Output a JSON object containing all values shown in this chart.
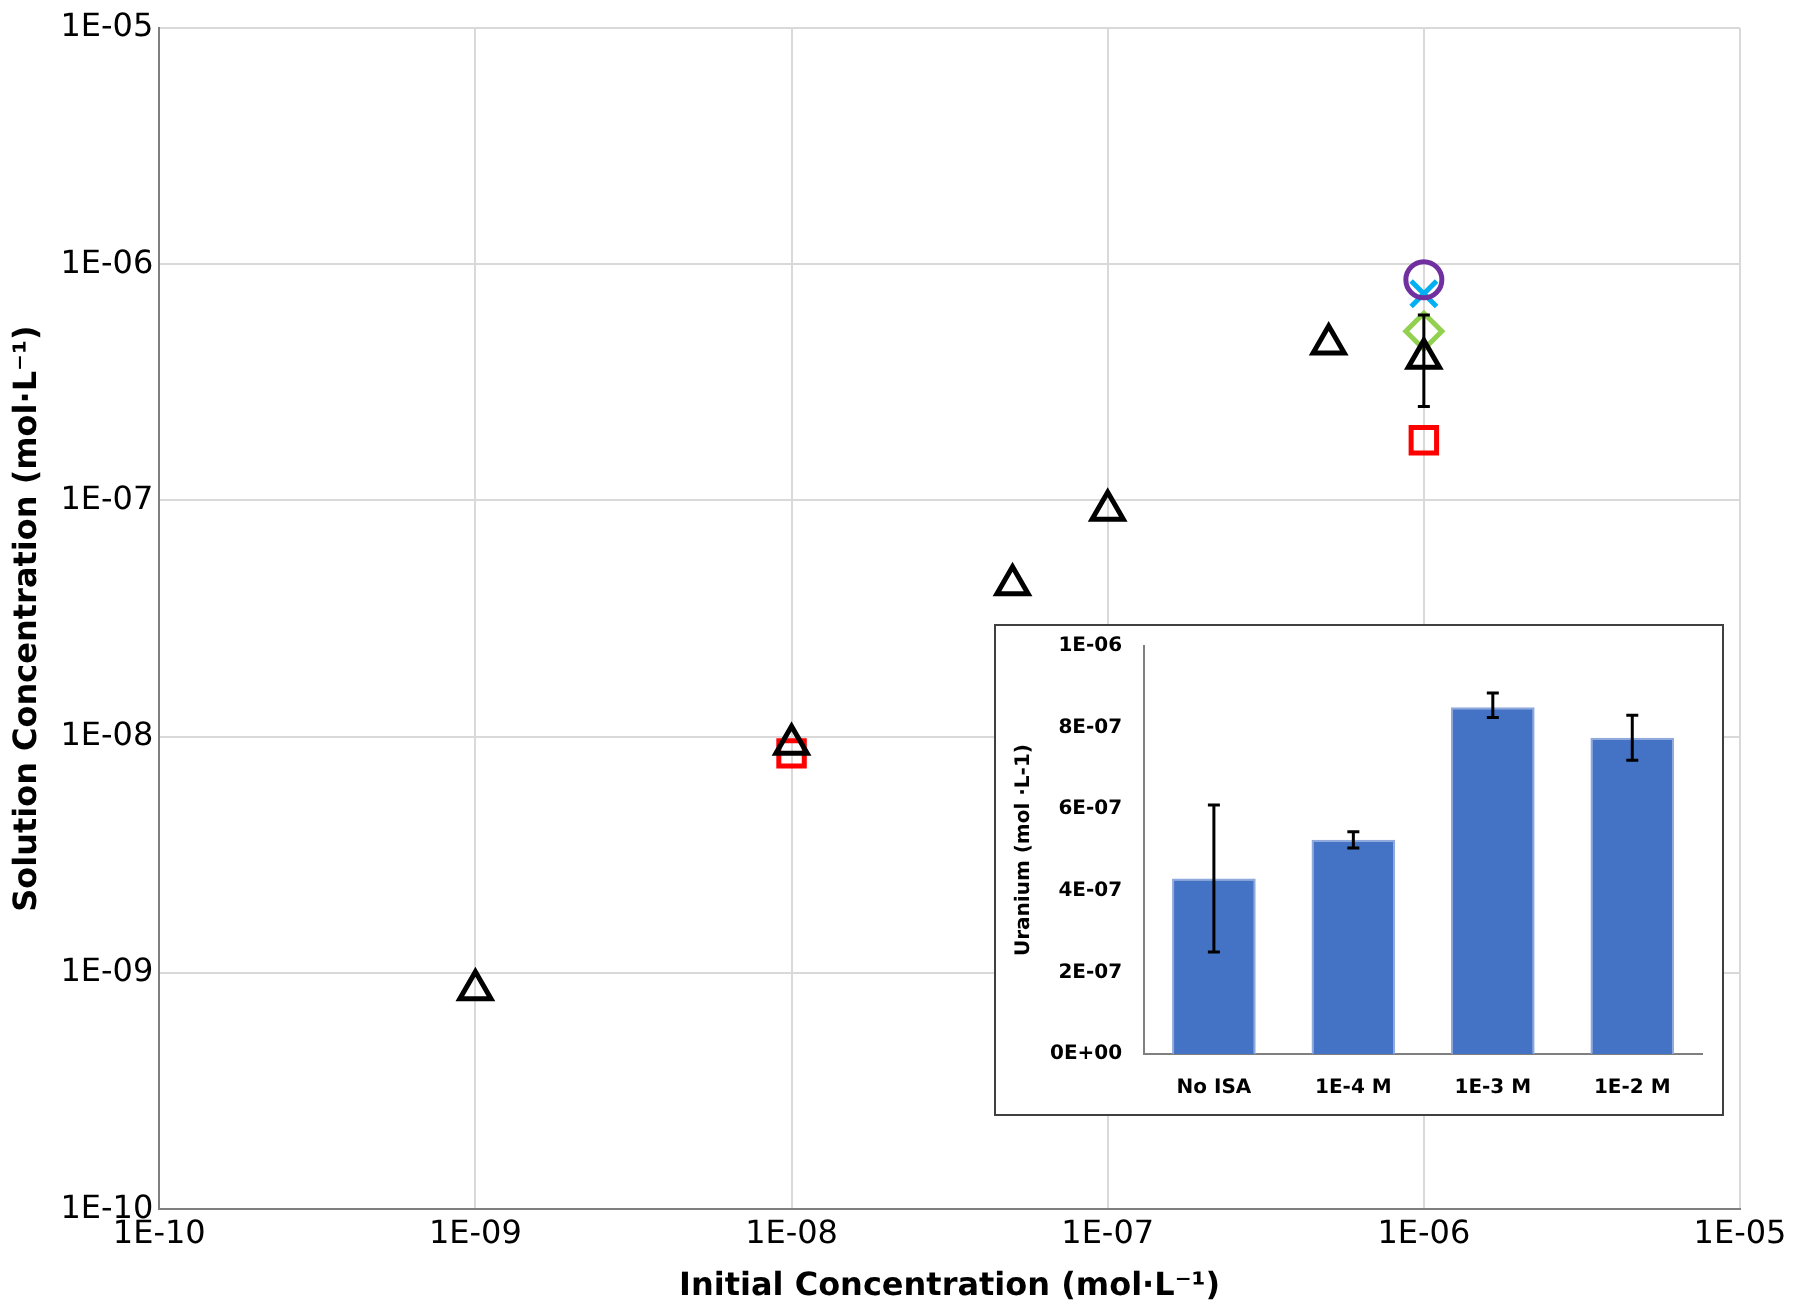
{
  "chart_data": [
    {
      "type": "scatter",
      "xlabel": "Initial Concentration (mol·L⁻¹)",
      "ylabel": "Solution Concentration (mol·L⁻¹)",
      "log": "xy",
      "grid": true,
      "legend": false,
      "xlim": [
        1e-10,
        1e-05
      ],
      "ylim": [
        1e-10,
        1e-05
      ],
      "xticks": [
        {
          "value": 1e-10,
          "label": "1E-10"
        },
        {
          "value": 1e-09,
          "label": "1E-09"
        },
        {
          "value": 1e-08,
          "label": "1E-08"
        },
        {
          "value": 1e-07,
          "label": "1E-07"
        },
        {
          "value": 1e-06,
          "label": "1E-06"
        },
        {
          "value": 1e-05,
          "label": "1E-05"
        }
      ],
      "yticks": [
        {
          "value": 1e-10,
          "label": "1E-10"
        },
        {
          "value": 1e-09,
          "label": "1E-09"
        },
        {
          "value": 1e-08,
          "label": "1E-08"
        },
        {
          "value": 1e-07,
          "label": "1E-07"
        },
        {
          "value": 1e-06,
          "label": "1E-06"
        },
        {
          "value": 1e-05,
          "label": "1E-05"
        }
      ],
      "series": [
        {
          "color": "#000000",
          "marker": "triangle",
          "x": [
            1e-09,
            1e-08,
            5e-08,
            1e-07,
            5e-07,
            1e-06
          ],
          "values": [
            8.5e-10,
            9.3e-09,
            4.4e-08,
            9.1e-08,
            4.6e-07,
            4e-07
          ],
          "errors": [
            null,
            null,
            null,
            null,
            null,
            [
              2.5e-07,
              6.1e-07
            ]
          ]
        },
        {
          "color": "#ff0000",
          "marker": "square",
          "x": [
            1e-08,
            1e-06
          ],
          "values": [
            8.5e-09,
            1.8e-07
          ]
        },
        {
          "color": "#7030a0",
          "marker": "circle",
          "x": [
            1e-06
          ],
          "values": [
            8.6e-07
          ]
        },
        {
          "color": "#00b0f0",
          "marker": "cross",
          "x": [
            1e-06
          ],
          "values": [
            7.5e-07
          ]
        },
        {
          "color": "#92d050",
          "marker": "diamond",
          "x": [
            1e-06
          ],
          "values": [
            5.2e-07
          ]
        }
      ]
    },
    {
      "type": "bar",
      "ylabel": "Uranium (mol ·L-1)",
      "categories": [
        "No ISA",
        "1E-4 M",
        "1E-3 M",
        "1E-2 M"
      ],
      "color": "#4472c4",
      "values": [
        4.3e-07,
        5.25e-07,
        8.5e-07,
        7.75e-07
      ],
      "errors": [
        [
          2.5e-07,
          6.1e-07
        ],
        [
          5.05e-07,
          5.45e-07
        ],
        [
          8.25e-07,
          8.85e-07
        ],
        [
          7.2e-07,
          8.3e-07
        ]
      ],
      "ylim": [
        0,
        1e-06
      ],
      "grid": false,
      "legend": false,
      "yticks": [
        {
          "value": 0,
          "label": "0E+00"
        },
        {
          "value": 2e-07,
          "label": "2E-07"
        },
        {
          "value": 4e-07,
          "label": "4E-07"
        },
        {
          "value": 6e-07,
          "label": "6E-07"
        },
        {
          "value": 8e-07,
          "label": "8E-07"
        },
        {
          "value": 1e-06,
          "label": "1E-06"
        }
      ]
    }
  ]
}
